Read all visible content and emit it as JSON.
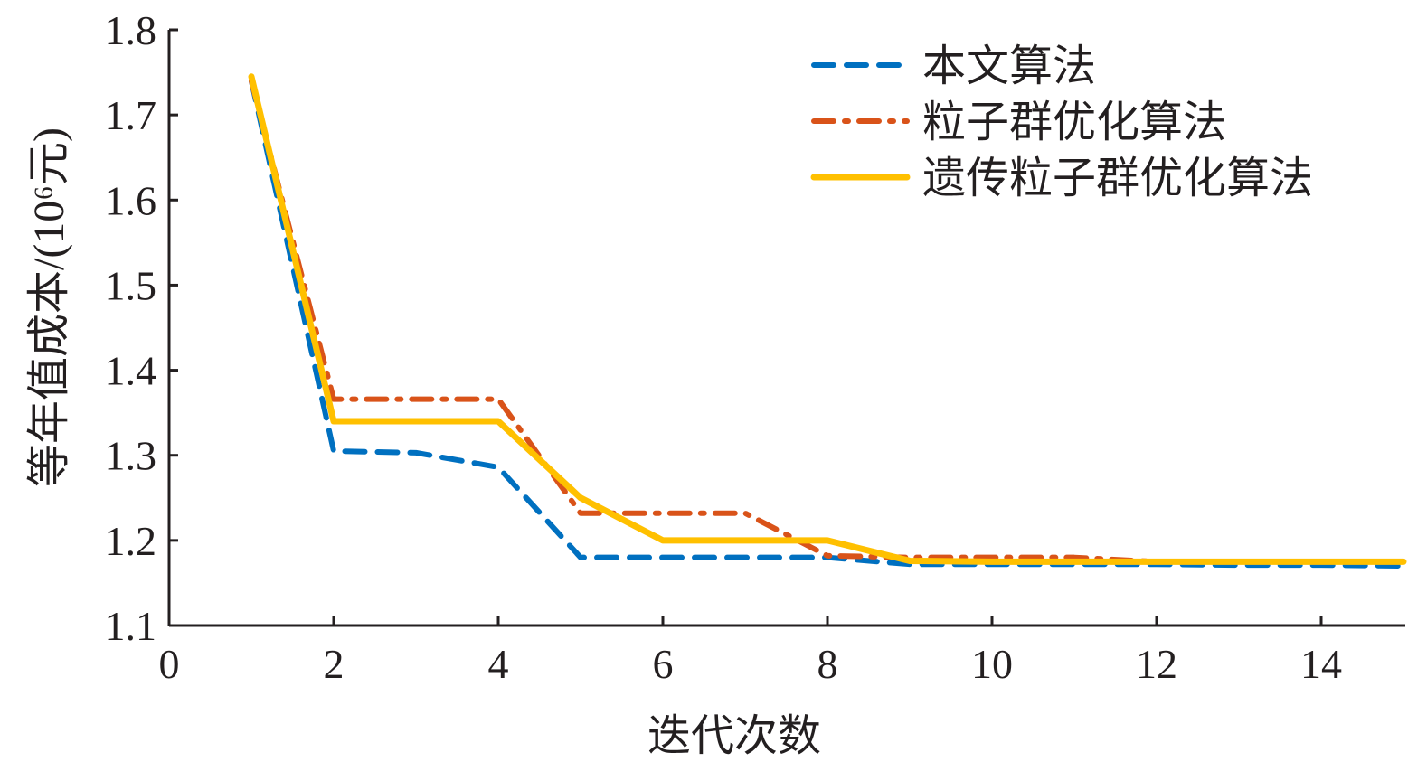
{
  "chart_data": {
    "type": "line",
    "title": "",
    "xlabel": "迭代次数",
    "ylabel": "等年值成本/(10⁶元)",
    "xlim": [
      0,
      15
    ],
    "ylim": [
      1.1,
      1.8
    ],
    "xticks": [
      0,
      2,
      4,
      6,
      8,
      10,
      12,
      14
    ],
    "xtick_labels": [
      "0",
      "2",
      "4",
      "6",
      "8",
      "10",
      "12",
      "14"
    ],
    "yticks": [
      1.1,
      1.2,
      1.3,
      1.4,
      1.5,
      1.6,
      1.7,
      1.8
    ],
    "ytick_labels": [
      "1.1",
      "1.2",
      "1.3",
      "1.4",
      "1.5",
      "1.6",
      "1.7",
      "1.8"
    ],
    "grid": false,
    "legend_position": "top-right",
    "x": [
      1,
      2,
      3,
      4,
      5,
      6,
      7,
      8,
      9,
      10,
      11,
      12,
      13,
      14,
      15
    ],
    "series": [
      {
        "name": "本文算法",
        "color": "#0070c0",
        "style": "dashed",
        "values": [
          1.74,
          1.305,
          1.303,
          1.286,
          1.18,
          1.18,
          1.18,
          1.18,
          1.172,
          1.172,
          1.172,
          1.172,
          1.171,
          1.171,
          1.17
        ]
      },
      {
        "name": "粒子群优化算法",
        "color": "#d95319",
        "style": "dashdot",
        "values": [
          1.74,
          1.366,
          1.366,
          1.366,
          1.232,
          1.232,
          1.232,
          1.182,
          1.18,
          1.18,
          1.18,
          1.175,
          1.175,
          1.175,
          1.175
        ]
      },
      {
        "name": "遗传粒子群优化算法",
        "color": "#ffc000",
        "style": "solid",
        "values": [
          1.745,
          1.34,
          1.34,
          1.34,
          1.25,
          1.2,
          1.2,
          1.2,
          1.176,
          1.175,
          1.175,
          1.175,
          1.175,
          1.175,
          1.175
        ]
      }
    ]
  }
}
